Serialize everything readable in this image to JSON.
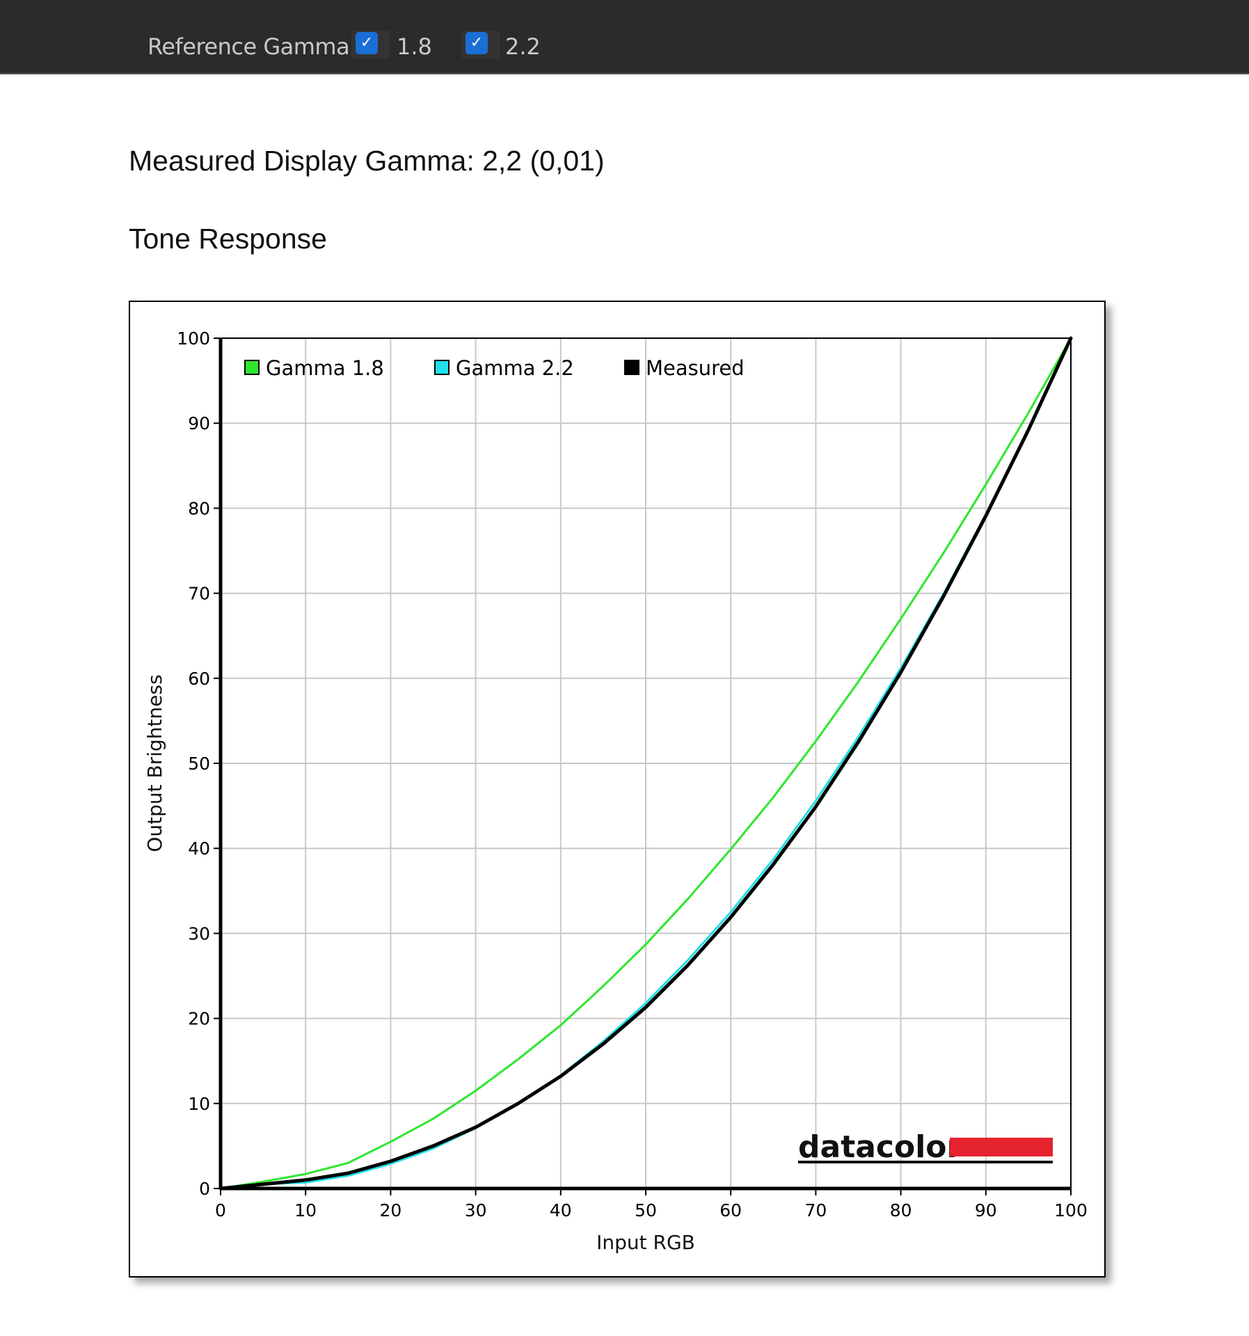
{
  "toolbar": {
    "reference_label": "Reference Gamma:",
    "options": [
      {
        "label": "1.8",
        "checked": true
      },
      {
        "label": "2.2",
        "checked": true
      }
    ]
  },
  "measured_heading": "Measured Display Gamma: 2,2 (0,01)",
  "section_title": "Tone Response",
  "brand": {
    "logo_text": "datacolor",
    "logo_bar_color": "#e4232f"
  },
  "chart_data": {
    "type": "line",
    "xlabel": "Input RGB",
    "ylabel": "Output Brightness",
    "xlim": [
      0,
      100
    ],
    "ylim": [
      0,
      100
    ],
    "xticks": [
      0,
      10,
      20,
      30,
      40,
      50,
      60,
      70,
      80,
      90,
      100
    ],
    "yticks": [
      0,
      10,
      20,
      30,
      40,
      50,
      60,
      70,
      80,
      90,
      100
    ],
    "grid": true,
    "legend_position": "top-left",
    "series": [
      {
        "name": "Gamma 1.8",
        "color": "#2ee62e",
        "x": [
          0,
          5,
          10,
          15,
          20,
          25,
          30,
          35,
          40,
          45,
          50,
          55,
          60,
          65,
          70,
          75,
          80,
          85,
          90,
          95,
          100
        ],
        "y": [
          0,
          0.8,
          1.7,
          3.0,
          5.5,
          8.2,
          11.5,
          15.2,
          19.2,
          23.8,
          28.7,
          34.1,
          39.9,
          46.0,
          52.6,
          59.6,
          67.0,
          74.7,
          82.8,
          91.2,
          100
        ]
      },
      {
        "name": "Gamma 2.2",
        "color": "#20e0e8",
        "x": [
          0,
          5,
          10,
          15,
          20,
          25,
          30,
          35,
          40,
          45,
          50,
          55,
          60,
          65,
          70,
          75,
          80,
          85,
          90,
          95,
          100
        ],
        "y": [
          0,
          0.5,
          0.7,
          1.5,
          2.9,
          4.7,
          7.1,
          9.9,
          13.3,
          17.3,
          21.8,
          26.9,
          32.5,
          38.7,
          45.6,
          53.1,
          61.2,
          69.9,
          79.3,
          89.3,
          100
        ]
      },
      {
        "name": "Measured",
        "color": "#000000",
        "x": [
          0,
          5,
          10,
          15,
          20,
          25,
          30,
          35,
          40,
          45,
          50,
          55,
          60,
          65,
          70,
          75,
          80,
          85,
          90,
          95,
          100
        ],
        "y": [
          0,
          0.5,
          1.0,
          1.8,
          3.2,
          5.0,
          7.2,
          10.0,
          13.2,
          17.0,
          21.3,
          26.3,
          31.9,
          38.1,
          44.9,
          52.5,
          60.7,
          69.6,
          79.1,
          89.2,
          100
        ]
      }
    ]
  }
}
